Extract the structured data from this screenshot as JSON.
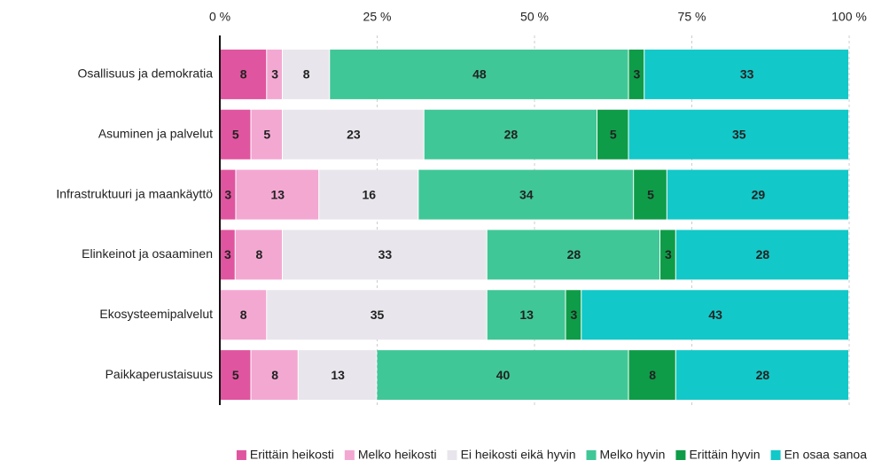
{
  "chart_data": {
    "type": "stacked_bar_horizontal",
    "categories": [
      "Osallisuus ja demokratia",
      "Asuminen ja palvelut",
      "Infrastruktuuri ja maankäyttö",
      "Elinkeinot ja osaaminen",
      "Ekosysteemipalvelut",
      "Paikkaperustaisuus"
    ],
    "xlim": [
      0,
      100
    ],
    "xticks": [
      {
        "value": 0,
        "label": "0 %"
      },
      {
        "value": 25,
        "label": "25 %"
      },
      {
        "value": 50,
        "label": "50 %"
      },
      {
        "value": 75,
        "label": "75 %"
      },
      {
        "value": 100,
        "label": "100 %"
      }
    ],
    "grid": true,
    "legend": "bottom",
    "series": [
      {
        "name": "Erittäin heikosti",
        "color": "#e0559f",
        "text_color": "#ffffff",
        "values": [
          7.5,
          5,
          2.6,
          2.5,
          null,
          5
        ],
        "value_labels": [
          "8",
          "5",
          "3",
          "3",
          null,
          "5"
        ]
      },
      {
        "name": "Melko heikosti",
        "color": "#f3a8d2",
        "text_color": "#222222",
        "values": [
          2.5,
          5,
          13.2,
          7.5,
          7.5,
          7.5
        ],
        "value_labels": [
          "3",
          "5",
          "13",
          "8",
          "8",
          "8"
        ]
      },
      {
        "name": "Ei heikosti eikä hyvin",
        "color": "#e8e6ec",
        "text_color": "#222222",
        "values": [
          7.5,
          22.5,
          15.8,
          32.5,
          35,
          12.5
        ],
        "value_labels": [
          "8",
          "23",
          "16",
          "33",
          "35",
          "13"
        ]
      },
      {
        "name": "Melko hyvin",
        "color": "#40c797",
        "text_color": "#ffffff",
        "values": [
          47.5,
          27.5,
          34.2,
          27.5,
          12.5,
          40
        ],
        "value_labels": [
          "48",
          "28",
          "34",
          "28",
          "13",
          "40"
        ]
      },
      {
        "name": "Erittäin hyvin",
        "color": "#0e9c48",
        "text_color": "#ffffff",
        "values": [
          2.5,
          5,
          5.3,
          2.5,
          2.5,
          7.5
        ],
        "value_labels": [
          "3",
          "5",
          "5",
          "3",
          "3",
          "8"
        ]
      },
      {
        "name": "En osaa sanoa",
        "color": "#13c8c8",
        "text_color": "#ffffff",
        "values": [
          32.5,
          35,
          28.9,
          27.5,
          42.5,
          27.5
        ],
        "value_labels": [
          "33",
          "35",
          "29",
          "28",
          "43",
          "28"
        ]
      }
    ]
  }
}
